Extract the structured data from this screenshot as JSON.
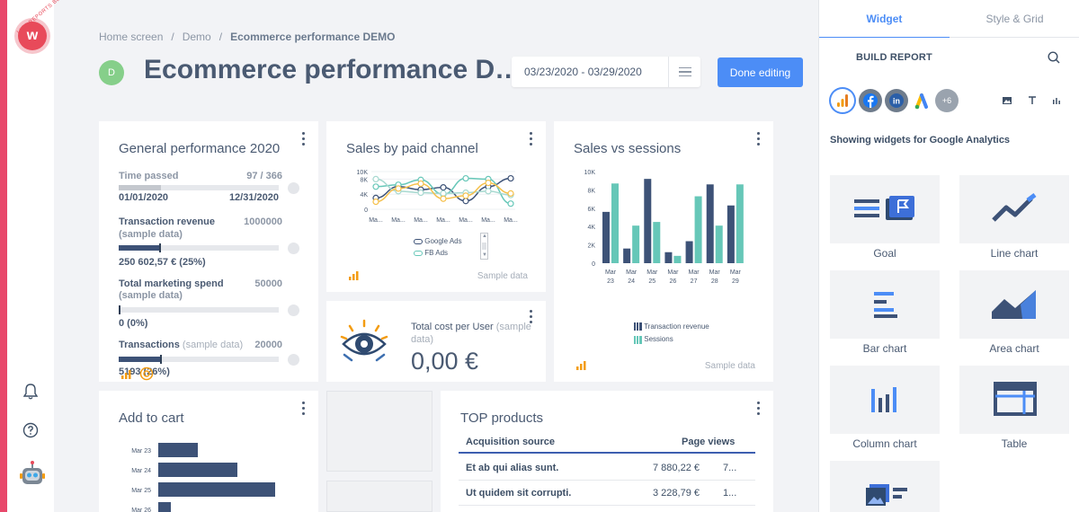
{
  "app": {
    "logo_text": "LIVE REPORTS BETA",
    "logo_letter": "w"
  },
  "breadcrumb": {
    "items": [
      "Home screen",
      "Demo",
      "Ecommerce performance DEMO"
    ]
  },
  "header": {
    "avatar_letter": "D",
    "title": "Ecommerce performance D…",
    "date_range": "03/23/2020 - 03/29/2020",
    "done_button": "Done editing"
  },
  "colors": {
    "accent": "#4c8df6",
    "navy": "#3d5277",
    "teal": "#66c7b8",
    "orange": "#f39c12",
    "yellow": "#f5c04a"
  },
  "general_performance": {
    "title": "General performance 2020",
    "time_passed_label": "Time passed",
    "time_passed_value": "97 / 366",
    "time_passed_fraction": 0.265,
    "start_date": "01/01/2020",
    "end_date": "12/31/2020",
    "metrics": [
      {
        "label": "Transaction revenue",
        "sub": "(sample data)",
        "target": "1000000",
        "result": "250 602,57 € (25%)",
        "fraction": 0.25
      },
      {
        "label": "Total marketing spend",
        "sub": "(sample data)",
        "target": "50000",
        "result": "0 (0%)",
        "fraction": 0.0
      },
      {
        "label": "Transactions",
        "sub": "(sample data)",
        "target": "20000",
        "result": "5193 (26%)",
        "fraction": 0.26
      }
    ]
  },
  "sales_by_channel": {
    "title": "Sales by paid channel",
    "y_ticks": [
      "10K",
      "8K",
      "4K",
      "0"
    ],
    "x_ticks": [
      "Ma...",
      "Ma...",
      "Ma...",
      "Ma...",
      "Ma...",
      "Ma...",
      "Ma..."
    ],
    "legend": [
      "Google Ads",
      "FB Ads"
    ],
    "sample": "Sample data"
  },
  "sales_vs_sessions": {
    "title": "Sales vs sessions",
    "sample": "Sample data",
    "legend": [
      "Transaction revenue",
      "Sessions"
    ]
  },
  "total_cost": {
    "label": "Total cost per User",
    "label_suffix": "(sample data)",
    "value": "0,00 €"
  },
  "add_to_cart": {
    "title": "Add to cart",
    "categories": [
      "Mar 23",
      "Mar 24",
      "Mar 25",
      "Mar 26"
    ]
  },
  "top_products": {
    "title": "TOP products",
    "columns": [
      "Acquisition source",
      "Page views"
    ],
    "rows": [
      {
        "name": "Et ab qui alias sunt.",
        "value": "7 880,22 €",
        "extra": "7..."
      },
      {
        "name": "Ut quidem sit corrupti.",
        "value": "3 228,79 €",
        "extra": "1..."
      }
    ]
  },
  "chart_data": [
    {
      "type": "line",
      "title": "Sales by paid channel",
      "categories": [
        "Ma...",
        "Ma...",
        "Ma...",
        "Ma...",
        "Ma...",
        "Ma...",
        "Ma..."
      ],
      "ylim": [
        0,
        10000
      ],
      "series": [
        {
          "name": "Google Ads",
          "values": [
            3000,
            6000,
            5200,
            5800,
            2200,
            6000,
            8200
          ]
        },
        {
          "name": "FB Ads",
          "values": [
            6000,
            6500,
            7800,
            4000,
            8200,
            8000,
            1500
          ]
        },
        {
          "values": [
            8000,
            4800,
            4400,
            4200,
            4400,
            4800,
            3800
          ]
        },
        {
          "values": [
            2000,
            5500,
            6800,
            2800,
            3600,
            7000,
            4200
          ]
        }
      ],
      "legend_position": "bottom"
    },
    {
      "type": "bar",
      "title": "Sales vs sessions",
      "categories": [
        "Mar 23",
        "Mar 24",
        "Mar 25",
        "Mar 26",
        "Mar 27",
        "Mar 28",
        "Mar 29"
      ],
      "y_ticks": [
        "10K",
        "8K",
        "6K",
        "4K",
        "2K",
        "0"
      ],
      "ylim": [
        0,
        10000
      ],
      "series": [
        {
          "name": "Transaction revenue",
          "values": [
            5600,
            1600,
            9200,
            1200,
            2400,
            8600,
            6300
          ]
        },
        {
          "name": "Sessions",
          "values": [
            8700,
            4100,
            4500,
            800,
            7300,
            4100,
            8600
          ]
        }
      ],
      "legend_position": "bottom"
    },
    {
      "type": "bar",
      "title": "Add to cart",
      "orientation": "horizontal",
      "categories": [
        "Mar 23",
        "Mar 24",
        "Mar 25",
        "Mar 26"
      ],
      "values": [
        44,
        88,
        130,
        14
      ]
    }
  ],
  "panel": {
    "tabs": [
      "Widget",
      "Style & Grid"
    ],
    "build_report": "BUILD REPORT",
    "more_sources": "+6",
    "showing": "Showing widgets for Google Analytics",
    "widgets": [
      "Goal",
      "Line chart",
      "Bar chart",
      "Area chart",
      "Column chart",
      "Table"
    ]
  }
}
